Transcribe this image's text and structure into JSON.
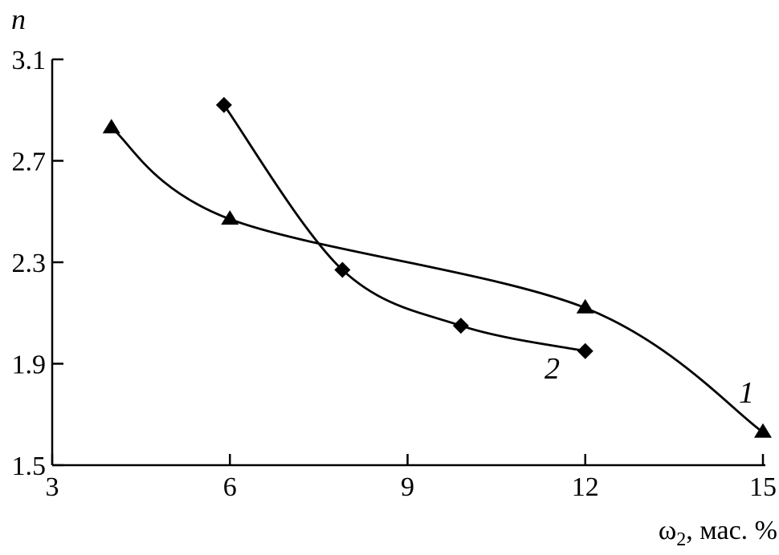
{
  "chart_data": {
    "type": "line",
    "ylabel": "n",
    "xlabel_main": "ω",
    "xlabel_sub": "2",
    "xlabel_rest": ", мас. %",
    "xlim": [
      3,
      15
    ],
    "ylim": [
      1.5,
      3.1
    ],
    "xticks": [
      3,
      6,
      9,
      12,
      15
    ],
    "yticks": [
      1.5,
      1.9,
      2.3,
      2.7,
      3.1
    ],
    "ytick_labels": [
      "1.5",
      "1.9",
      "2.3",
      "2.7",
      "3.1"
    ],
    "grid": false,
    "series": [
      {
        "name": "1",
        "marker": "triangle",
        "x": [
          4,
          6,
          12,
          15
        ],
        "y": [
          2.83,
          2.47,
          2.12,
          1.63
        ]
      },
      {
        "name": "2",
        "marker": "diamond",
        "x": [
          5.9,
          7.9,
          9.9,
          12
        ],
        "y": [
          2.92,
          2.27,
          2.05,
          1.95
        ]
      }
    ]
  }
}
